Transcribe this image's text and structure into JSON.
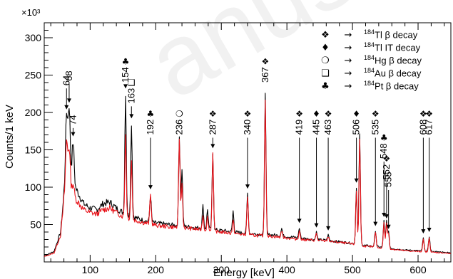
{
  "chart_data": {
    "type": "line",
    "xlabel": "Energy [keV]",
    "ylabel": "Counts/1 keV",
    "y_multiplier": "×10³",
    "xlim": [
      30,
      650
    ],
    "ylim": [
      0,
      320
    ],
    "x_ticks": [
      100,
      200,
      300,
      400,
      500,
      600
    ],
    "y_ticks": [
      50,
      100,
      150,
      200,
      250,
      300
    ],
    "colors": {
      "series_a": "#000000",
      "series_b": "#e8141b"
    },
    "series": [
      {
        "name": "",
        "color": "#000000",
        "background": [
          [
            30,
            8
          ],
          [
            45,
            14
          ],
          [
            55,
            40
          ],
          [
            60,
            90
          ],
          [
            70,
            105
          ],
          [
            80,
            95
          ],
          [
            90,
            78
          ],
          [
            100,
            72
          ],
          [
            110,
            70
          ],
          [
            120,
            78
          ],
          [
            130,
            80
          ],
          [
            140,
            72
          ],
          [
            150,
            66
          ],
          [
            160,
            62
          ],
          [
            180,
            56
          ],
          [
            200,
            52
          ],
          [
            220,
            50
          ],
          [
            240,
            48
          ],
          [
            260,
            46
          ],
          [
            280,
            44
          ],
          [
            300,
            42
          ],
          [
            320,
            40
          ],
          [
            340,
            38
          ],
          [
            360,
            37
          ],
          [
            380,
            36
          ],
          [
            400,
            34
          ],
          [
            420,
            32
          ],
          [
            440,
            30
          ],
          [
            460,
            29
          ],
          [
            480,
            27
          ],
          [
            500,
            25
          ],
          [
            520,
            22
          ],
          [
            540,
            20
          ],
          [
            560,
            18
          ],
          [
            580,
            16
          ],
          [
            600,
            15
          ],
          [
            620,
            14
          ],
          [
            640,
            13
          ],
          [
            650,
            12
          ]
        ],
        "peaks": [
          [
            64,
            195
          ],
          [
            68,
            205
          ],
          [
            74,
            160
          ],
          [
            154,
            225
          ],
          [
            163,
            185
          ],
          [
            192,
            90
          ],
          [
            236,
            170
          ],
          [
            240,
            125
          ],
          [
            272,
            75
          ],
          [
            279,
            70
          ],
          [
            287,
            145
          ],
          [
            318,
            68
          ],
          [
            340,
            92
          ],
          [
            367,
            228
          ],
          [
            392,
            45
          ],
          [
            419,
            45
          ],
          [
            445,
            40
          ],
          [
            463,
            36
          ],
          [
            506,
            100
          ],
          [
            511,
            172
          ],
          [
            535,
            42
          ],
          [
            548,
            55
          ],
          [
            552,
            55
          ],
          [
            555,
            40
          ],
          [
            608,
            32
          ],
          [
            617,
            34
          ]
        ]
      },
      {
        "name": "",
        "color": "#e8141b",
        "background": [
          [
            30,
            7
          ],
          [
            45,
            12
          ],
          [
            55,
            36
          ],
          [
            60,
            82
          ],
          [
            70,
            92
          ],
          [
            80,
            82
          ],
          [
            90,
            70
          ],
          [
            100,
            66
          ],
          [
            110,
            64
          ],
          [
            120,
            70
          ],
          [
            130,
            72
          ],
          [
            140,
            66
          ],
          [
            150,
            61
          ],
          [
            160,
            58
          ],
          [
            180,
            53
          ],
          [
            200,
            49
          ],
          [
            220,
            47
          ],
          [
            240,
            46
          ],
          [
            260,
            44
          ],
          [
            280,
            42
          ],
          [
            300,
            40
          ],
          [
            320,
            38
          ],
          [
            340,
            36
          ],
          [
            360,
            35
          ],
          [
            380,
            34
          ],
          [
            400,
            32
          ],
          [
            420,
            30
          ],
          [
            440,
            29
          ],
          [
            460,
            28
          ],
          [
            480,
            26
          ],
          [
            500,
            24
          ],
          [
            520,
            21
          ],
          [
            540,
            19
          ],
          [
            560,
            17
          ],
          [
            580,
            15
          ],
          [
            600,
            14
          ],
          [
            620,
            13
          ],
          [
            640,
            12
          ],
          [
            650,
            11
          ]
        ],
        "peaks": [
          [
            64,
            160
          ],
          [
            68,
            150
          ],
          [
            74,
            105
          ],
          [
            154,
            170
          ],
          [
            163,
            135
          ],
          [
            192,
            90
          ],
          [
            236,
            165
          ],
          [
            240,
            105
          ],
          [
            272,
            62
          ],
          [
            279,
            60
          ],
          [
            287,
            145
          ],
          [
            318,
            55
          ],
          [
            340,
            88
          ],
          [
            367,
            218
          ],
          [
            392,
            42
          ],
          [
            419,
            42
          ],
          [
            445,
            38
          ],
          [
            463,
            34
          ],
          [
            506,
            95
          ],
          [
            511,
            165
          ],
          [
            535,
            40
          ],
          [
            548,
            52
          ],
          [
            552,
            52
          ],
          [
            555,
            38
          ],
          [
            608,
            30
          ],
          [
            617,
            32
          ]
        ]
      }
    ],
    "annotations": [
      {
        "energy": 64,
        "label": "64",
        "symbol": "",
        "y_text": 236,
        "y_arrow": 204
      },
      {
        "energy": 68,
        "label": "68",
        "symbol": "",
        "y_text": 242,
        "y_arrow": 213
      },
      {
        "energy": 74,
        "label": "74",
        "symbol": "",
        "y_text": 183,
        "y_arrow": 168
      },
      {
        "energy": 154,
        "label": "154",
        "symbol": "♣",
        "y_text": 240,
        "y_arrow": 232
      },
      {
        "energy": 163,
        "label": "163",
        "symbol": "❑",
        "y_text": 212,
        "y_arrow": 192
      },
      {
        "energy": 192,
        "label": "192",
        "symbol": "♣",
        "y_text": 170,
        "y_arrow": 97
      },
      {
        "energy": 236,
        "label": "236",
        "symbol": "❍",
        "y_text": 170,
        "y_arrow": 176
      },
      {
        "energy": 287,
        "label": "287",
        "symbol": "❖",
        "y_text": 170,
        "y_arrow": 152
      },
      {
        "energy": 340,
        "label": "340",
        "symbol": "❖",
        "y_text": 170,
        "y_arrow": 98
      },
      {
        "energy": 367,
        "label": "367",
        "symbol": "❖",
        "y_text": 240,
        "y_arrow": 234
      },
      {
        "energy": 419,
        "label": "419",
        "symbol": "❖",
        "y_text": 170,
        "y_arrow": 52
      },
      {
        "energy": 445,
        "label": "445",
        "symbol": "♦",
        "y_text": 170,
        "y_arrow": 46
      },
      {
        "energy": 463,
        "label": "463",
        "symbol": "❖",
        "y_text": 170,
        "y_arrow": 42
      },
      {
        "energy": 506,
        "label": "506",
        "symbol": "♦",
        "y_text": 170,
        "y_arrow": 106
      },
      {
        "energy": 535,
        "label": "535",
        "symbol": "❖",
        "y_text": 170,
        "y_arrow": 48
      },
      {
        "energy": 548,
        "label": "548",
        "symbol": "♣",
        "y_text": 138,
        "y_arrow": 60
      },
      {
        "energy": 552,
        "label": "552",
        "symbol": "❖",
        "y_text": 110,
        "y_arrow": 58
      },
      {
        "energy": 555,
        "label": "555",
        "symbol": "",
        "y_text": 100,
        "y_arrow": 44
      },
      {
        "energy": 608,
        "label": "608",
        "symbol": "❖",
        "y_text": 170,
        "y_arrow": 38
      },
      {
        "energy": 617,
        "label": "617",
        "symbol": "❖",
        "y_text": 170,
        "y_arrow": 40
      }
    ],
    "legend": [
      {
        "symbol": "❖",
        "arrow": "→",
        "mass": "184",
        "text": "Tl β decay"
      },
      {
        "symbol": "♦",
        "arrow": "→",
        "mass": "184",
        "text": "Tl IT decay"
      },
      {
        "symbol": "❍",
        "arrow": "→",
        "mass": "184",
        "text": "Hg β decay"
      },
      {
        "symbol": "❑",
        "arrow": "→",
        "mass": "184",
        "text": "Au β decay"
      },
      {
        "symbol": "♣",
        "arrow": "→",
        "mass": "184",
        "text": "Pt β decay"
      }
    ]
  },
  "watermark": "anuscri"
}
